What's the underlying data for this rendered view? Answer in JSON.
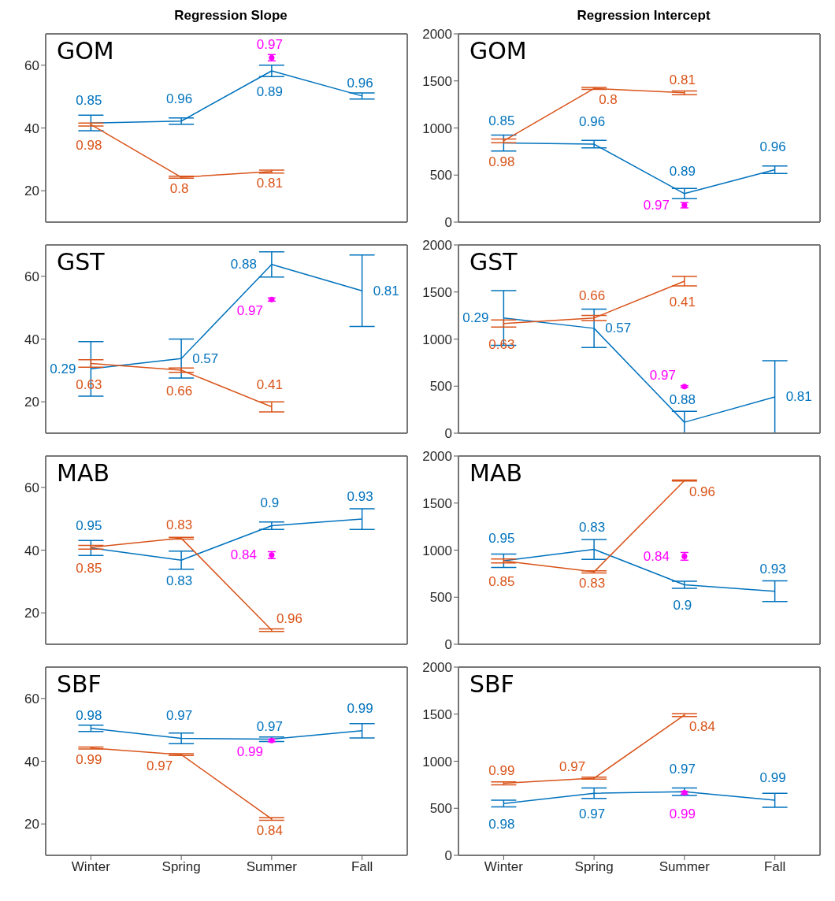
{
  "chart_data": [
    {
      "type": "line",
      "title": "Regression Slope",
      "categories": [
        "Winter",
        "Spring",
        "Summer",
        "Fall"
      ],
      "ylim": [
        10,
        70
      ],
      "yticks": [
        20,
        40,
        60
      ],
      "tick_labels": "y",
      "grid": false,
      "legend": false,
      "marker": "none",
      "line_style": "solid",
      "series": [
        {
          "color": "#0072bd",
          "values": [
            41.6,
            42.2,
            58.2,
            50.2
          ],
          "errors": [
            2.5,
            1,
            1.8,
            1
          ]
        },
        {
          "color": "#d95319",
          "values": [
            41.1,
            24.3,
            26.1,
            null
          ],
          "errors": [
            0.5,
            0.3,
            0.5,
            null
          ]
        },
        {
          "type": "scatter",
          "marker": "circle",
          "color": "#ff00ff",
          "values": [
            null,
            null,
            62.4,
            null
          ],
          "errors": [
            null,
            null,
            1,
            null
          ]
        }
      ],
      "annotations": [
        "GOM",
        {
          "text": "0.85",
          "x": "Winter",
          "y": 41.6
        },
        {
          "text": "0.96",
          "x": "Spring",
          "y": 42.2
        },
        {
          "text": "0.89",
          "x": "Summer",
          "y": 58.2
        },
        {
          "text": "0.96",
          "x": "Fall",
          "y": 50.2
        },
        {
          "text": "0.98",
          "x": "Winter",
          "y": 41.1
        },
        {
          "text": "0.8",
          "x": "Spring",
          "y": 24.3
        },
        {
          "text": "0.81",
          "x": "Summer",
          "y": 26.1
        },
        {
          "text": "0.97",
          "x": "Summer",
          "y": 62.4
        }
      ]
    },
    {
      "type": "line",
      "title": "Regression Intercept",
      "categories": [
        "Winter",
        "Spring",
        "Summer",
        "Fall"
      ],
      "ylim": [
        0,
        2000
      ],
      "yticks": [
        0,
        500,
        1000,
        1500,
        2000
      ],
      "tick_labels": "y",
      "grid": false,
      "legend": false,
      "marker": "none",
      "line_style": "solid",
      "series": [
        {
          "color": "#0072bd",
          "values": [
            840,
            828,
            303,
            557
          ],
          "errors": [
            85,
            40,
            55,
            40
          ]
        },
        {
          "color": "#d95319",
          "values": [
            863,
            1420,
            1374,
            null
          ],
          "errors": [
            20,
            10,
            20,
            null
          ]
        },
        {
          "type": "scatter",
          "marker": "circle",
          "color": "#ff00ff",
          "values": [
            null,
            null,
            179,
            null
          ],
          "errors": [
            null,
            null,
            28,
            null
          ]
        }
      ],
      "annotations": [
        "GOM",
        {
          "text": "0.85",
          "x": "Winter",
          "y": 840
        },
        {
          "text": "0.96",
          "x": "Spring",
          "y": 828
        },
        {
          "text": "0.89",
          "x": "Summer",
          "y": 303
        },
        {
          "text": "0.96",
          "x": "Fall",
          "y": 557
        },
        {
          "text": "0.98",
          "x": "Winter",
          "y": 863
        },
        {
          "text": "0.8",
          "x": "Spring",
          "y": 1420
        },
        {
          "text": "0.81",
          "x": "Summer",
          "y": 1374
        },
        {
          "text": "0.97",
          "x": "Summer",
          "y": 179
        }
      ]
    },
    {
      "type": "line",
      "categories": [
        "Winter",
        "Spring",
        "Summer",
        "Fall"
      ],
      "ylim": [
        10,
        70
      ],
      "yticks": [
        20,
        40,
        60
      ],
      "tick_labels": "y",
      "grid": false,
      "legend": false,
      "marker": "none",
      "line_style": "solid",
      "series": [
        {
          "color": "#0072bd",
          "values": [
            30.5,
            33.8,
            63.8,
            55.4
          ],
          "errors": [
            8.7,
            6.2,
            4,
            11.4
          ]
        },
        {
          "color": "#d95319",
          "values": [
            32.2,
            30.1,
            18.4,
            null
          ],
          "errors": [
            1.2,
            0.7,
            1.6,
            null
          ]
        },
        {
          "type": "scatter",
          "marker": "circle",
          "color": "#ff00ff",
          "values": [
            null,
            null,
            52.6,
            null
          ],
          "errors": [
            null,
            null,
            0.5,
            null
          ]
        }
      ],
      "annotations": [
        "GST",
        {
          "text": "0.29",
          "x": "Winter",
          "y": 30.5
        },
        {
          "text": "0.57",
          "x": "Spring",
          "y": 33.8
        },
        {
          "text": "0.88",
          "x": "Summer",
          "y": 63.8
        },
        {
          "text": "0.81",
          "x": "Fall",
          "y": 55.4
        },
        {
          "text": "0.63",
          "x": "Winter",
          "y": 32.2
        },
        {
          "text": "0.66",
          "x": "Spring",
          "y": 30.1
        },
        {
          "text": "0.41",
          "x": "Summer",
          "y": 18.4
        },
        {
          "text": "0.97",
          "x": "Summer",
          "y": 52.6
        }
      ]
    },
    {
      "type": "line",
      "categories": [
        "Winter",
        "Spring",
        "Summer",
        "Fall"
      ],
      "ylim": [
        0,
        2000
      ],
      "yticks": [
        0,
        500,
        1000,
        1500,
        2000
      ],
      "tick_labels": "y",
      "grid": false,
      "legend": false,
      "marker": "none",
      "line_style": "solid",
      "series": [
        {
          "color": "#0072bd",
          "values": [
            1224,
            1114,
            116,
            385
          ],
          "errors": [
            290,
            205,
            116,
            385
          ]
        },
        {
          "color": "#d95319",
          "values": [
            1165,
            1224,
            1615,
            null
          ],
          "errors": [
            37,
            28,
            50,
            null
          ]
        },
        {
          "type": "scatter",
          "marker": "circle",
          "color": "#ff00ff",
          "values": [
            null,
            null,
            495,
            null
          ],
          "errors": [
            null,
            null,
            10,
            null
          ]
        }
      ],
      "annotations": [
        "GST",
        {
          "text": "0.29",
          "x": "Winter",
          "y": 1224
        },
        {
          "text": "0.57",
          "x": "Spring",
          "y": 1114
        },
        {
          "text": "0.88",
          "x": "Summer",
          "y": 116
        },
        {
          "text": "0.81",
          "x": "Fall",
          "y": 385
        },
        {
          "text": "0.63",
          "x": "Winter",
          "y": 1165
        },
        {
          "text": "0.66",
          "x": "Spring",
          "y": 1224
        },
        {
          "text": "0.41",
          "x": "Summer",
          "y": 1615
        },
        {
          "text": "0.97",
          "x": "Summer",
          "y": 495
        }
      ]
    },
    {
      "type": "line",
      "categories": [
        "Winter",
        "Spring",
        "Summer",
        "Fall"
      ],
      "ylim": [
        10,
        70
      ],
      "yticks": [
        20,
        40,
        60
      ],
      "tick_labels": "y",
      "grid": false,
      "legend": false,
      "marker": "none",
      "line_style": "solid",
      "series": [
        {
          "color": "#0072bd",
          "values": [
            40.7,
            36.8,
            47.8,
            49.9
          ],
          "errors": [
            2.4,
            2.9,
            1.2,
            3.3
          ]
        },
        {
          "color": "#d95319",
          "values": [
            40.9,
            43.8,
            14.5,
            null
          ],
          "errors": [
            0.6,
            0.3,
            0.4,
            null
          ]
        },
        {
          "type": "scatter",
          "marker": "circle",
          "color": "#ff00ff",
          "values": [
            null,
            null,
            38.4,
            null
          ],
          "errors": [
            null,
            null,
            1.1,
            null
          ]
        }
      ],
      "annotations": [
        "MAB",
        {
          "text": "0.95",
          "x": "Winter",
          "y": 40.7
        },
        {
          "text": "0.83",
          "x": "Spring",
          "y": 36.8
        },
        {
          "text": "0.9",
          "x": "Summer",
          "y": 47.8
        },
        {
          "text": "0.93",
          "x": "Fall",
          "y": 49.9
        },
        {
          "text": "0.85",
          "x": "Winter",
          "y": 40.9
        },
        {
          "text": "0.83",
          "x": "Spring",
          "y": 43.8
        },
        {
          "text": "0.96",
          "x": "Summer",
          "y": 14.5
        },
        {
          "text": "0.84",
          "x": "Summer",
          "y": 38.4
        }
      ]
    },
    {
      "type": "line",
      "categories": [
        "Winter",
        "Spring",
        "Summer",
        "Fall"
      ],
      "ylim": [
        0,
        2000
      ],
      "yticks": [
        0,
        500,
        1000,
        1500,
        2000
      ],
      "tick_labels": "y",
      "grid": false,
      "legend": false,
      "marker": "none",
      "line_style": "solid",
      "series": [
        {
          "color": "#0072bd",
          "values": [
            887,
            1008,
            632,
            563
          ],
          "errors": [
            72,
            106,
            38,
            110
          ]
        },
        {
          "color": "#d95319",
          "values": [
            885,
            769,
            1739,
            null
          ],
          "errors": [
            20,
            12,
            5,
            null
          ]
        },
        {
          "type": "scatter",
          "marker": "circle",
          "color": "#ff00ff",
          "values": [
            null,
            null,
            934,
            null
          ],
          "errors": [
            null,
            null,
            41,
            null
          ]
        }
      ],
      "annotations": [
        "MAB",
        {
          "text": "0.95",
          "x": "Winter",
          "y": 887
        },
        {
          "text": "0.83",
          "x": "Spring",
          "y": 1008
        },
        {
          "text": "0.9",
          "x": "Summer",
          "y": 632
        },
        {
          "text": "0.93",
          "x": "Fall",
          "y": 563
        },
        {
          "text": "0.85",
          "x": "Winter",
          "y": 885
        },
        {
          "text": "0.83",
          "x": "Spring",
          "y": 769
        },
        {
          "text": "0.96",
          "x": "Summer",
          "y": 1739
        },
        {
          "text": "0.84",
          "x": "Summer",
          "y": 934
        }
      ]
    },
    {
      "type": "line",
      "categories": [
        "Winter",
        "Spring",
        "Summer",
        "Fall"
      ],
      "ylim": [
        10,
        70
      ],
      "yticks": [
        20,
        40,
        60
      ],
      "grid": false,
      "legend": false,
      "marker": "none",
      "line_style": "solid",
      "series": [
        {
          "color": "#0072bd",
          "values": [
            50.5,
            47.3,
            47,
            49.7
          ],
          "errors": [
            1,
            1.7,
            0.7,
            2.3
          ]
        },
        {
          "color": "#d95319",
          "values": [
            44.2,
            42.1,
            21.6,
            null
          ],
          "errors": [
            0.3,
            0.3,
            0.4,
            null
          ]
        },
        {
          "type": "scatter",
          "marker": "circle",
          "color": "#ff00ff",
          "values": [
            null,
            null,
            46.6,
            null
          ],
          "errors": [
            null,
            null,
            0.4,
            null
          ]
        }
      ],
      "annotations": [
        "SBF",
        {
          "text": "0.98",
          "x": "Winter",
          "y": 50.5
        },
        {
          "text": "0.97",
          "x": "Spring",
          "y": 47.3
        },
        {
          "text": "0.97",
          "x": "Summer",
          "y": 47
        },
        {
          "text": "0.99",
          "x": "Fall",
          "y": 49.7
        },
        {
          "text": "0.99",
          "x": "Winter",
          "y": 44.2
        },
        {
          "text": "0.97",
          "x": "Spring",
          "y": 42.1
        },
        {
          "text": "0.84",
          "x": "Summer",
          "y": 21.6
        },
        {
          "text": "0.99",
          "x": "Summer",
          "y": 46.6
        }
      ]
    },
    {
      "type": "line",
      "categories": [
        "Winter",
        "Spring",
        "Summer",
        "Fall"
      ],
      "ylim": [
        0,
        2000
      ],
      "yticks": [
        0,
        500,
        1000,
        1500,
        2000
      ],
      "grid": false,
      "legend": false,
      "marker": "none",
      "line_style": "solid",
      "series": [
        {
          "color": "#0072bd",
          "values": [
            550,
            660,
            675,
            585
          ],
          "errors": [
            35,
            55,
            40,
            75
          ]
        },
        {
          "color": "#d95319",
          "values": [
            765,
            820,
            1490,
            null
          ],
          "errors": [
            15,
            10,
            15,
            null
          ]
        },
        {
          "type": "scatter",
          "marker": "circle",
          "color": "#ff00ff",
          "values": [
            null,
            null,
            665,
            null
          ],
          "errors": [
            null,
            null,
            15,
            null
          ]
        }
      ],
      "annotations": [
        "SBF",
        {
          "text": "0.98",
          "x": "Winter",
          "y": 550
        },
        {
          "text": "0.97",
          "x": "Spring",
          "y": 660
        },
        {
          "text": "0.97",
          "x": "Summer",
          "y": 675
        },
        {
          "text": "0.99",
          "x": "Fall",
          "y": 585
        },
        {
          "text": "0.99",
          "x": "Winter",
          "y": 765
        },
        {
          "text": "0.97",
          "x": "Spring",
          "y": 820
        },
        {
          "text": "0.84",
          "x": "Summer",
          "y": 1490
        },
        {
          "text": "0.99",
          "x": "Summer",
          "y": 665
        }
      ]
    }
  ]
}
